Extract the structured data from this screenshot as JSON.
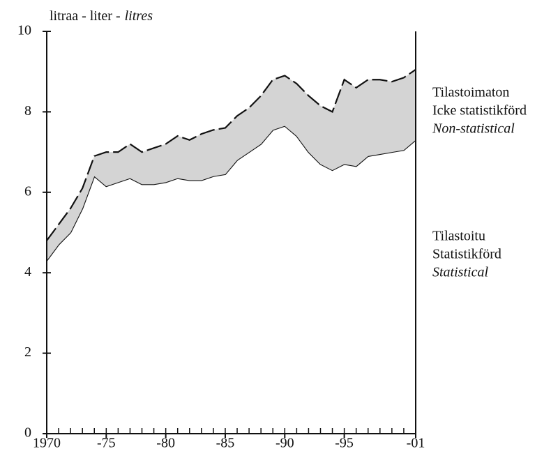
{
  "chart_data": {
    "type": "stacked_area",
    "y_label": [
      {
        "text": "litraa - liter -",
        "italic": false
      },
      {
        "text": "litres",
        "italic": true
      }
    ],
    "x": [
      1970,
      1971,
      1972,
      1973,
      1974,
      1975,
      1976,
      1977,
      1978,
      1979,
      1980,
      1981,
      1982,
      1983,
      1984,
      1985,
      1986,
      1987,
      1988,
      1989,
      1990,
      1991,
      1992,
      1993,
      1994,
      1995,
      1996,
      1997,
      1998,
      1999,
      2000,
      2001
    ],
    "series": [
      {
        "name": "Statistical",
        "translations": [
          "Tilastoitu",
          "Statistikförd"
        ],
        "color": "#ffffff",
        "line": "solid",
        "values": [
          4.3,
          4.7,
          5.0,
          5.6,
          6.4,
          6.15,
          6.25,
          6.35,
          6.2,
          6.2,
          6.25,
          6.35,
          6.3,
          6.3,
          6.4,
          6.45,
          6.8,
          7.0,
          7.2,
          7.55,
          7.65,
          7.4,
          7.0,
          6.7,
          6.55,
          6.7,
          6.65,
          6.9,
          6.95,
          7.0,
          7.05,
          7.3
        ]
      },
      {
        "name": "Non-statistical",
        "translations": [
          "Tilastoimaton",
          "Icke statistikförd"
        ],
        "color": "#d4d4d4",
        "line": "dashed",
        "values": [
          0.5,
          0.5,
          0.6,
          0.5,
          0.5,
          0.85,
          0.75,
          0.85,
          0.8,
          0.9,
          0.95,
          1.05,
          1.0,
          1.15,
          1.15,
          1.15,
          1.1,
          1.1,
          1.2,
          1.25,
          1.25,
          1.3,
          1.4,
          1.45,
          1.45,
          2.1,
          1.95,
          1.9,
          1.85,
          1.75,
          1.8,
          1.75
        ]
      }
    ],
    "xlim": [
      1970,
      2001
    ],
    "xticks": [
      1970,
      {
        "value": 1975,
        "label": "-75"
      },
      {
        "value": 1980,
        "label": "-80"
      },
      {
        "value": 1985,
        "label": "-85"
      },
      {
        "value": 1990,
        "label": "-90"
      },
      {
        "value": 1995,
        "label": "-95"
      },
      {
        "value": 2001,
        "label": "-01"
      }
    ],
    "ylim": [
      0,
      10
    ],
    "yticks": [
      0,
      2,
      4,
      6,
      8,
      10
    ]
  }
}
